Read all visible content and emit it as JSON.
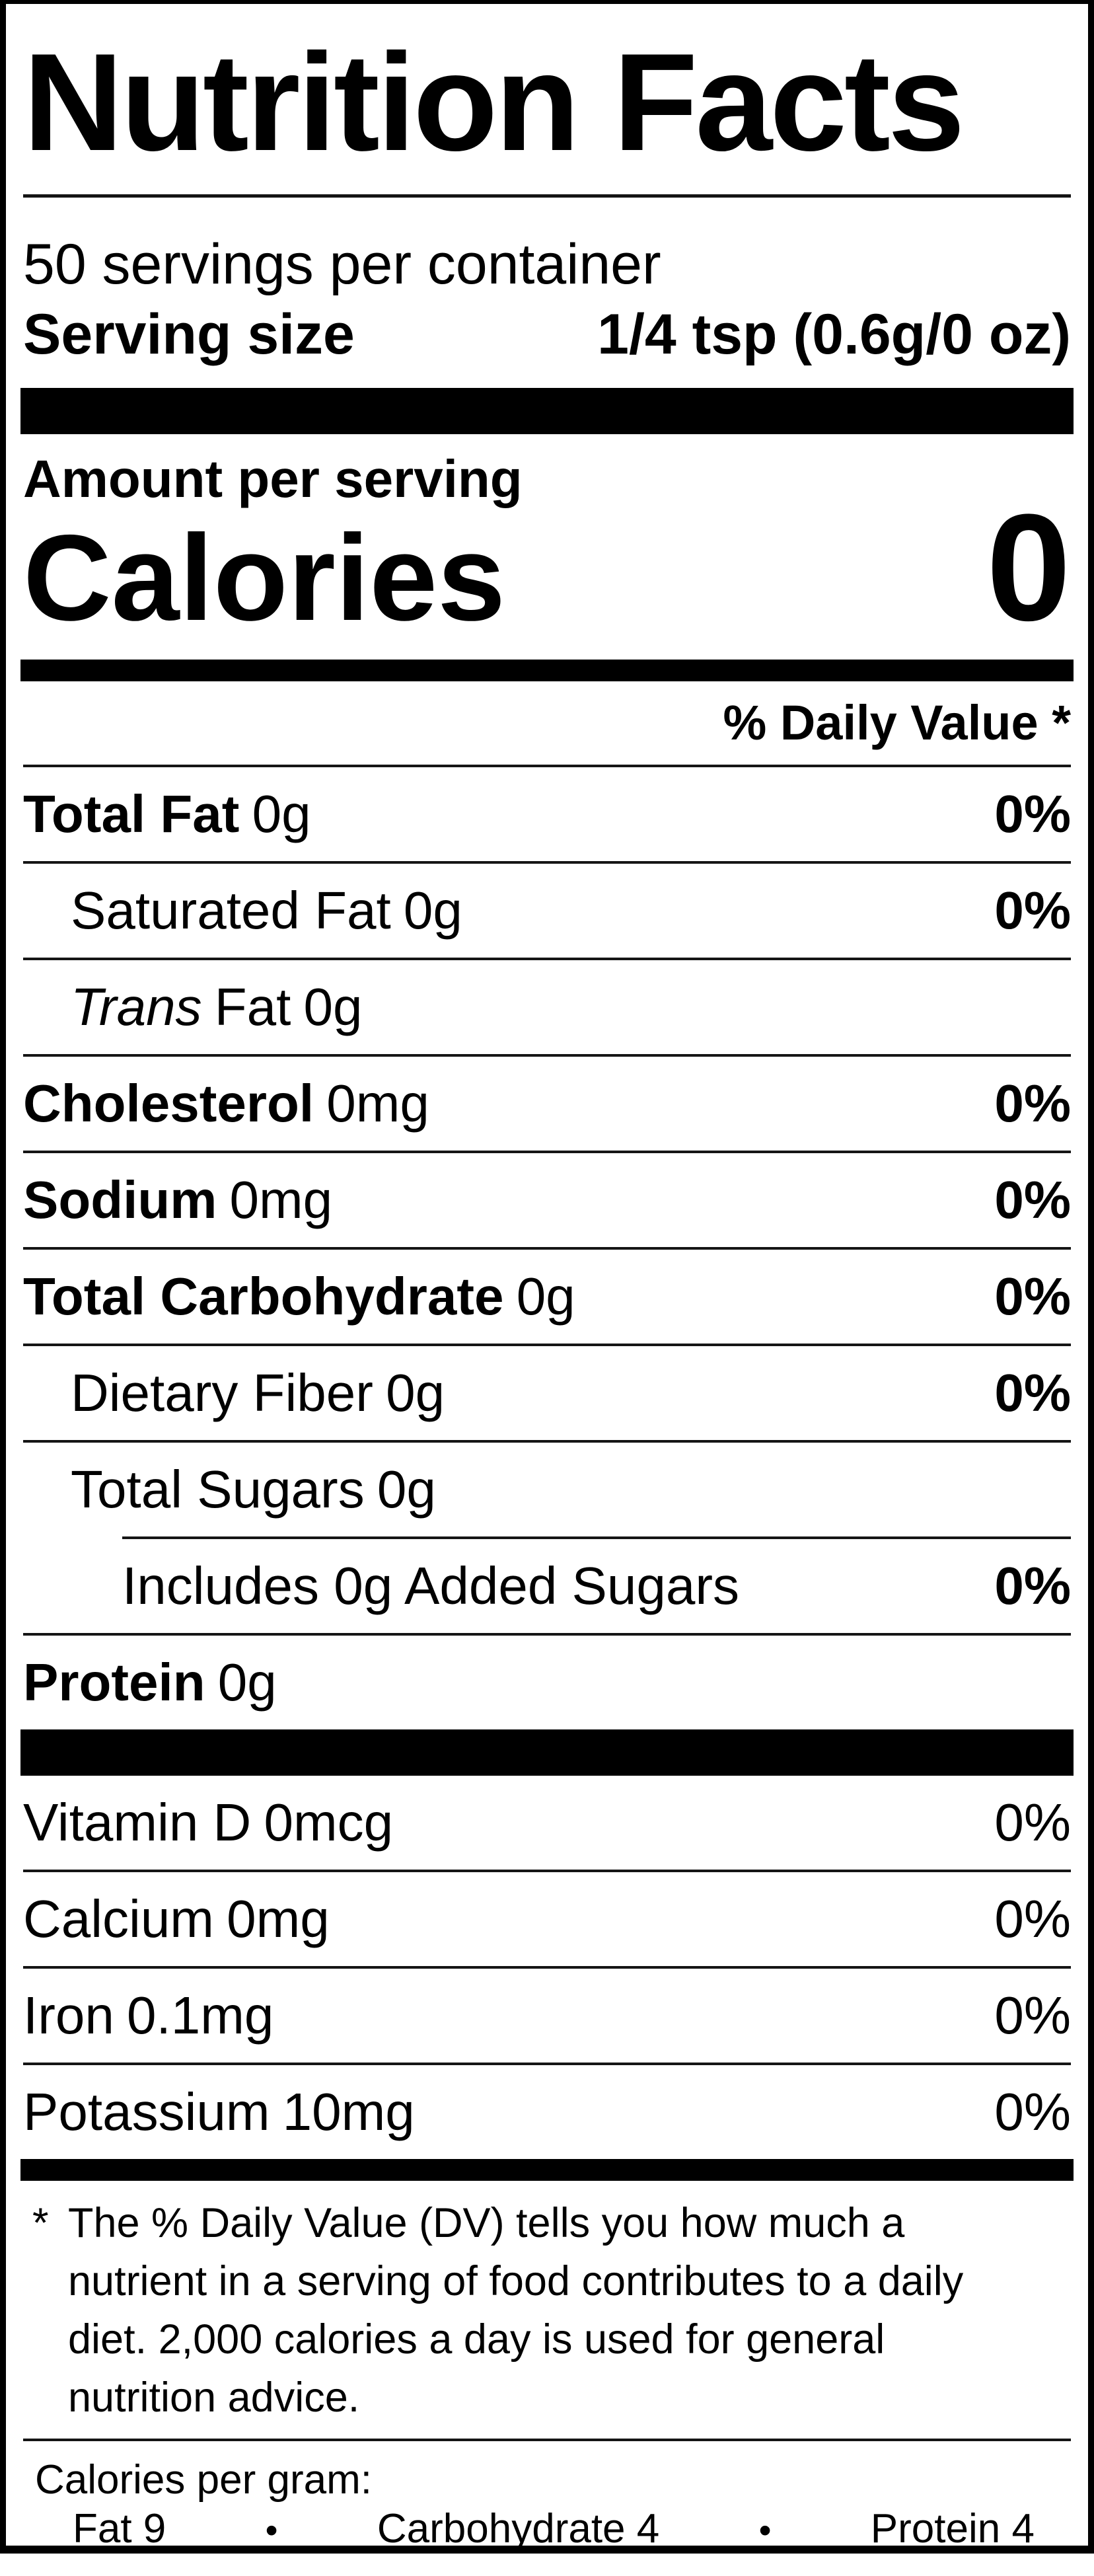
{
  "label": {
    "title": "Nutrition Facts",
    "servings_per_container": "50 servings per container",
    "serving_size": {
      "label": "Serving size",
      "value": "1/4 tsp (0.6g/0 oz)"
    },
    "amount_per_serving": "Amount per serving",
    "calories": {
      "label": "Calories",
      "value": "0"
    },
    "daily_value_header": "% Daily Value *",
    "rows": [
      {
        "name": "Total Fat",
        "amount": "0g",
        "dv": "0%"
      },
      {
        "name": "Saturated Fat",
        "amount": "0g",
        "dv": "0%"
      },
      {
        "name_italic": "Trans",
        "name": "Fat",
        "amount": "0g",
        "dv": ""
      },
      {
        "name": "Cholesterol",
        "amount": "0mg",
        "dv": "0%"
      },
      {
        "name": "Sodium",
        "amount": "0mg",
        "dv": "0%"
      },
      {
        "name": "Total Carbohydrate",
        "amount": "0g",
        "dv": "0%"
      },
      {
        "name": "Dietary Fiber",
        "amount": "0g",
        "dv": "0%"
      },
      {
        "name": "Total Sugars",
        "amount": "0g",
        "dv": ""
      },
      {
        "name": "Includes 0g Added Sugars",
        "amount": "",
        "dv": "0%"
      },
      {
        "name": "Protein",
        "amount": "0g",
        "dv": ""
      }
    ],
    "vitamins": [
      {
        "name": "Vitamin D",
        "amount": "0mcg",
        "dv": "0%"
      },
      {
        "name": "Calcium",
        "amount": "0mg",
        "dv": "0%"
      },
      {
        "name": "Iron",
        "amount": "0.1mg",
        "dv": "0%"
      },
      {
        "name": "Potassium",
        "amount": "10mg",
        "dv": "0%"
      }
    ],
    "footnote": {
      "marker": "*",
      "text": "The % Daily Value (DV) tells you how much a nutrient in a serving of food contributes to a daily diet. 2,000 calories a day is used for general nutrition advice."
    },
    "calories_per_gram": {
      "heading": "Calories per gram:",
      "fat": "Fat 9",
      "carbohydrate": "Carbohydrate 4",
      "protein": "Protein 4",
      "bullet": "•"
    },
    "colors": {
      "ink": "#000000",
      "background": "#ffffff"
    }
  }
}
